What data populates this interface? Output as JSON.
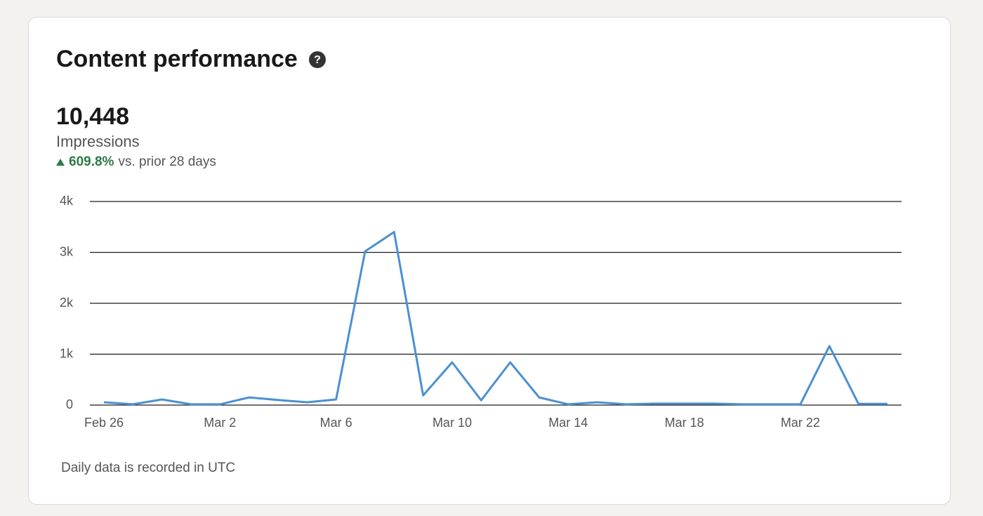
{
  "card": {
    "title": "Content performance",
    "total": "10,448",
    "metric": "Impressions",
    "change": "609.8%",
    "comparison": "vs. prior 28 days",
    "footnote": "Daily data is recorded in UTC"
  },
  "chart_data": {
    "type": "line",
    "categories": [
      "Feb 26",
      null,
      null,
      null,
      "Mar 2",
      null,
      null,
      null,
      "Mar 6",
      null,
      null,
      null,
      "Mar 10",
      null,
      null,
      null,
      "Mar 14",
      null,
      null,
      null,
      "Mar 18",
      null,
      null,
      null,
      "Mar 22",
      null,
      null,
      null
    ],
    "series": [
      {
        "name": "Impressions",
        "color": "#4a90d2",
        "values": [
          55,
          15,
          110,
          15,
          15,
          150,
          100,
          55,
          110,
          3020,
          3400,
          190,
          840,
          95,
          840,
          150,
          15,
          55,
          15,
          30,
          30,
          30,
          15,
          15,
          15,
          1160,
          25,
          25
        ]
      }
    ],
    "ylim": [
      0,
      4000
    ],
    "yticks": [
      0,
      {
        "value": 1000,
        "label": "1k"
      },
      {
        "value": 2000,
        "label": "2k"
      },
      {
        "value": 3000,
        "label": "3k"
      },
      {
        "value": 4000,
        "label": "4k"
      }
    ],
    "grid": true
  }
}
